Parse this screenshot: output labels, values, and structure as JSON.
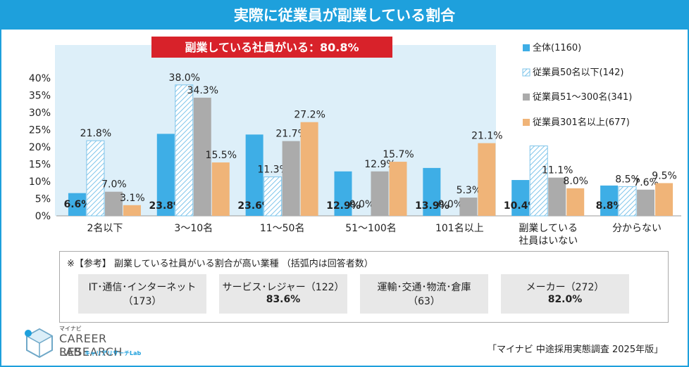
{
  "page": {
    "title": "実際に従業員が副業している割合",
    "source": "「マイナビ 中途採用実態調査 2025年版」"
  },
  "colors": {
    "accent": "#1ea0dc",
    "highlight_red": "#d8222a",
    "highlight_bg": "#ddeff9"
  },
  "chart_data": {
    "type": "bar",
    "highlight_label": "副業している社員がいる：80.8%",
    "categories": [
      "2名以下",
      "3～10名",
      "11～50名",
      "51～100名",
      "101名以上",
      "副業している\n社員はいない",
      "分からない"
    ],
    "yaxis": {
      "ylim": [
        0,
        40
      ],
      "ticks": [
        "0%",
        "5%",
        "10%",
        "15%",
        "20%",
        "25%",
        "30%",
        "35%",
        "40%"
      ]
    },
    "series": [
      {
        "name": "全体(1160)",
        "color": "#3eaee6",
        "pattern": "solid",
        "values": [
          6.6,
          23.8,
          23.6,
          12.9,
          13.9,
          10.4,
          8.8
        ],
        "labels": [
          "6.6%",
          "23.8%",
          "23.6%",
          "12.9%",
          "13.9%",
          "10.4%",
          "8.8%"
        ]
      },
      {
        "name": "従業員50名以下(142)",
        "color": "#7ec4ea",
        "pattern": "hatch",
        "values": [
          21.8,
          38.0,
          11.3,
          0.0,
          0.0,
          20.3,
          8.5
        ],
        "labels": [
          "21.8%",
          "38.0%",
          "11.3%",
          "0.0%",
          "0.0%",
          "",
          "8.5%"
        ]
      },
      {
        "name": "従業員51～300名(341)",
        "color": "#ababab",
        "pattern": "solid",
        "values": [
          7.0,
          34.3,
          21.7,
          12.9,
          5.3,
          11.1,
          7.6
        ],
        "labels": [
          "7.0%",
          "34.3%",
          "21.7%",
          "12.9%",
          "5.3%",
          "11.1%",
          "7.6%"
        ]
      },
      {
        "name": "従業員301名以上(677)",
        "color": "#f0b478",
        "pattern": "solid",
        "values": [
          3.1,
          15.5,
          27.2,
          15.7,
          21.1,
          8.0,
          9.5
        ],
        "labels": [
          "3.1%",
          "15.5%",
          "27.2%",
          "15.7%",
          "21.1%",
          "8.0%",
          "9.5%"
        ]
      }
    ]
  },
  "reference": {
    "heading": "※【参考】 副業している社員がいる割合が高い業種 （括弧内は回答者数）",
    "items": [
      {
        "name": "IT･通信･インターネット",
        "count": "（173）",
        "pct": ""
      },
      {
        "name": "サービス･レジャー（122）",
        "count": "",
        "pct": "83.6%"
      },
      {
        "name": "運輸･交通･物流･倉庫",
        "count": "（63）",
        "pct": ""
      },
      {
        "name": "メーカー（272）",
        "count": "",
        "pct": "82.0%"
      }
    ]
  },
  "logo": {
    "small": "マイナビ",
    "line1": "CAREER RESEARCH",
    "line2": "LAB",
    "sub": "キャリアリサーチLab"
  }
}
